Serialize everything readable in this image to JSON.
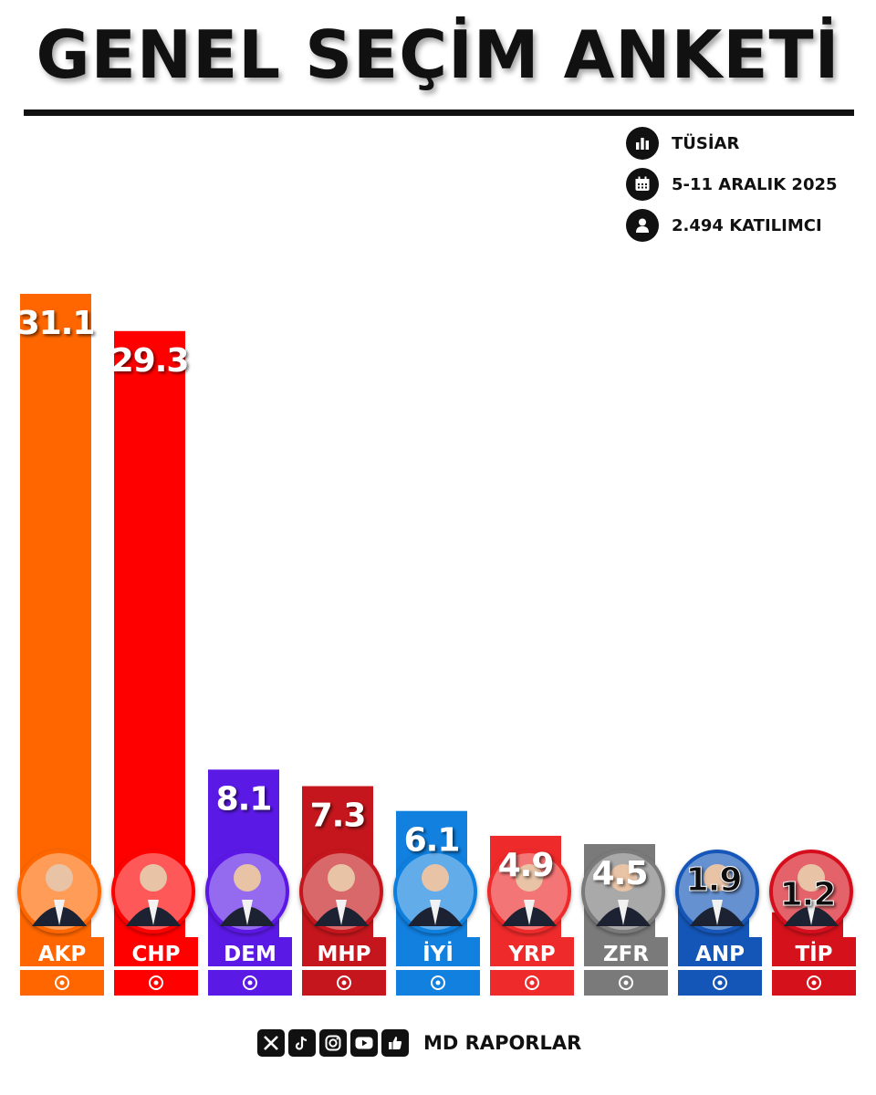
{
  "header": {
    "title": "GENEL SEÇİM ANKETİ",
    "pollster": "TÜSİAR",
    "dates": "5-11 ARALIK 2025",
    "participants": "2.494 KATILIMCI"
  },
  "footer": {
    "brand": "MD RAPORLAR",
    "social_icons": [
      "x-icon",
      "tiktok-icon",
      "instagram-icon",
      "youtube-icon",
      "facebook-like-icon"
    ]
  },
  "chart_data": {
    "type": "bar",
    "title": "GENEL SEÇİM ANKETİ",
    "categories": [
      "AKP",
      "CHP",
      "DEM",
      "MHP",
      "İYİ",
      "YRP",
      "ZFR",
      "ANP",
      "TİP"
    ],
    "values": [
      31.1,
      29.3,
      8.1,
      7.3,
      6.1,
      4.9,
      4.5,
      1.9,
      1.2
    ],
    "value_labels": [
      "31.1",
      "29.3",
      "8.1",
      "7.3",
      "6.1",
      "4.9",
      "4.5",
      "1.9",
      "1.2"
    ],
    "colors": [
      "#ff6600",
      "#ff0000",
      "#5b19e6",
      "#c4161c",
      "#1180df",
      "#ee2a2a",
      "#7a7a7a",
      "#1456b8",
      "#d5111b"
    ],
    "ylim": [
      0,
      31.1
    ],
    "grid": false,
    "legend": "none",
    "logo_icons": [
      "ak-party-light-bulb-icon",
      "chp-six-arrows-icon",
      "dem-party-tree-icon",
      "mhp-three-crescents-icon",
      "iyi-party-sun-icon",
      "yrp-crescent-icon",
      "zafer-party-flame-icon",
      "anahtar-party-key-icon",
      "tip-party-logo-icon"
    ]
  }
}
